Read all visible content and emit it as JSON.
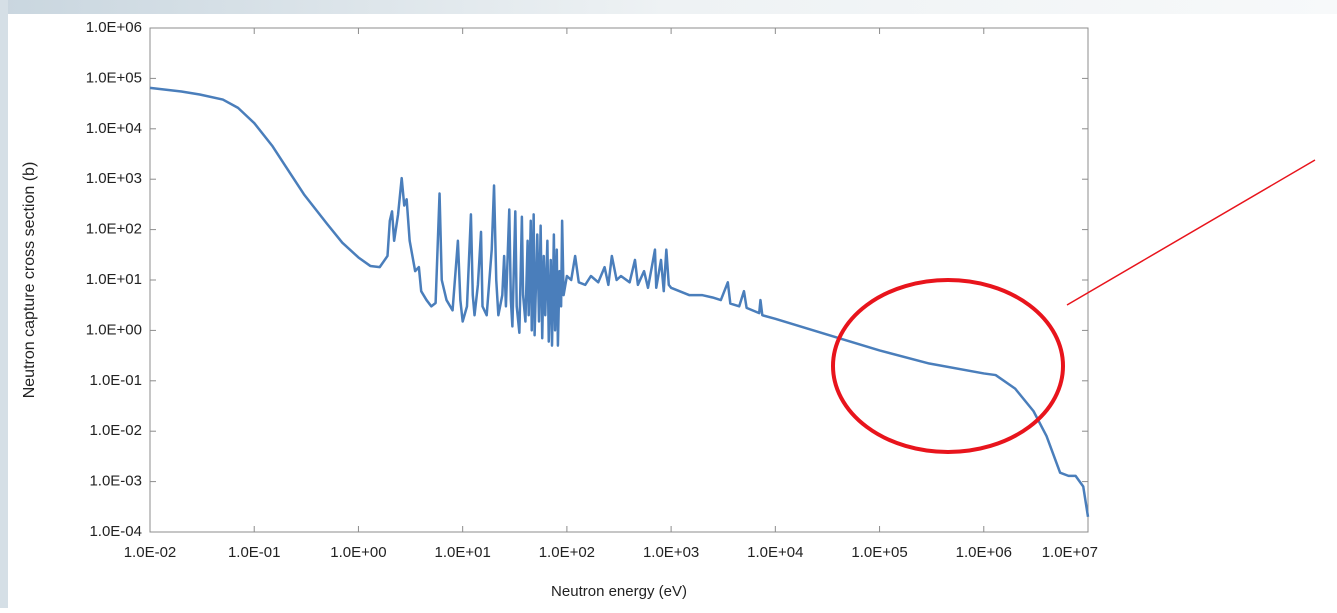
{
  "chart_data": {
    "type": "line",
    "x_label": "Neutron energy (eV)",
    "y_label": "Neutron capture cross section (b)",
    "xscale": "log",
    "yscale": "log",
    "color": "#4a7ebb",
    "xlim": [
      0.01,
      10000000
    ],
    "ylim": [
      0.0001,
      1000000
    ],
    "xticks": [
      {
        "value": 0.01,
        "label": "1.0E-02"
      },
      {
        "value": 0.1,
        "label": "1.0E-01"
      },
      {
        "value": 1,
        "label": "1.0E+00"
      },
      {
        "value": 10,
        "label": "1.0E+01"
      },
      {
        "value": 100,
        "label": "1.0E+02"
      },
      {
        "value": 1000,
        "label": "1.0E+03"
      },
      {
        "value": 10000,
        "label": "1.0E+04"
      },
      {
        "value": 100000,
        "label": "1.0E+05"
      },
      {
        "value": 1000000,
        "label": "1.0E+06"
      },
      {
        "value": 10000000,
        "label": "1.0E+07"
      }
    ],
    "yticks": [
      {
        "value": 0.0001,
        "label": "1.0E-04"
      },
      {
        "value": 0.001,
        "label": "1.0E-03"
      },
      {
        "value": 0.01,
        "label": "1.0E-02"
      },
      {
        "value": 0.1,
        "label": "1.0E-01"
      },
      {
        "value": 1,
        "label": "1.0E+00"
      },
      {
        "value": 10,
        "label": "1.0E+01"
      },
      {
        "value": 100,
        "label": "1.0E+02"
      },
      {
        "value": 1000,
        "label": "1.0E+03"
      },
      {
        "value": 10000,
        "label": "1.0E+04"
      },
      {
        "value": 100000,
        "label": "1.0E+05"
      },
      {
        "value": 1000000,
        "label": "1.0E+06"
      }
    ],
    "x": [
      0.01,
      0.02,
      0.03,
      0.05,
      0.07,
      0.1,
      0.15,
      0.2,
      0.3,
      0.5,
      0.7,
      1.0,
      1.3,
      1.6,
      1.9,
      2.0,
      2.1,
      2.2,
      2.4,
      2.6,
      2.75,
      2.9,
      3.1,
      3.5,
      3.8,
      4.0,
      4.5,
      5,
      5.5,
      6.0,
      6.3,
      7,
      8,
      9,
      9.5,
      10,
      11,
      12,
      12.5,
      13,
      14,
      15,
      15.5,
      17,
      19,
      20,
      21,
      22,
      24,
      25,
      26,
      28,
      29,
      30,
      32,
      33,
      35,
      37,
      38,
      40,
      42,
      43,
      45,
      46,
      48,
      49,
      52,
      54,
      56,
      58,
      60,
      62,
      65,
      67,
      70,
      72,
      75,
      77,
      80,
      82,
      85,
      88,
      90,
      93,
      100,
      110,
      120,
      130,
      150,
      170,
      200,
      230,
      250,
      270,
      300,
      330,
      400,
      450,
      480,
      550,
      600,
      700,
      720,
      800,
      850,
      900,
      950,
      1000,
      1500,
      2000,
      2500,
      3000,
      3500,
      3700,
      4500,
      5000,
      5300,
      7000,
      7200,
      7500,
      10000,
      30000,
      100000,
      300000,
      1000000,
      1300000,
      2000000,
      3000000,
      4000000,
      5400000,
      6500000,
      7600000,
      9000000,
      10000000
    ],
    "values": [
      65000,
      55000,
      48000,
      38000,
      26000,
      13000,
      4500,
      1800,
      500,
      130,
      55,
      28,
      19,
      18,
      30,
      150,
      230,
      60,
      200,
      1050,
      300,
      400,
      60,
      15,
      18,
      6,
      4,
      3,
      3.5,
      520,
      10,
      4,
      2.5,
      60,
      4,
      1.5,
      3,
      200,
      5,
      2,
      8,
      90,
      3,
      2,
      40,
      750,
      10,
      2,
      5,
      30,
      3,
      250,
      4,
      1.2,
      230,
      3,
      0.9,
      180,
      5,
      1.5,
      60,
      2,
      150,
      1,
      200,
      0.8,
      80,
      1.5,
      120,
      0.7,
      30,
      2,
      60,
      0.6,
      25,
      0.5,
      80,
      1,
      40,
      0.5,
      15,
      3,
      150,
      5,
      12,
      10,
      30,
      9,
      8,
      12,
      9,
      18,
      8,
      30,
      10,
      12,
      9,
      25,
      8,
      15,
      7,
      40,
      7,
      25,
      6,
      40,
      8,
      7,
      5,
      5,
      4.5,
      4,
      9,
      3.4,
      3,
      6,
      2.8,
      2.2,
      4,
      2,
      1.7,
      0.85,
      0.4,
      0.22,
      0.14,
      0.13,
      0.07,
      0.025,
      0.008,
      0.0015,
      0.0013,
      0.0013,
      0.0008,
      0.0002
    ]
  }
}
